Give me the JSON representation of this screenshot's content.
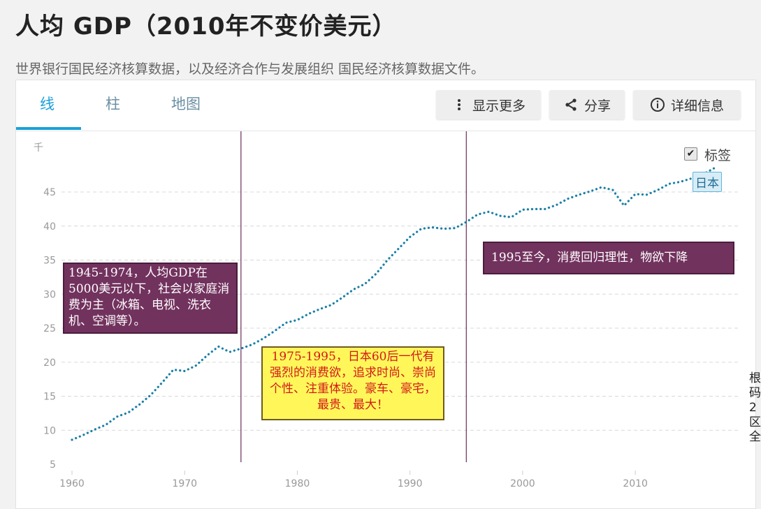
{
  "header": {
    "title": "人均 GDP（2010年不变价美元）",
    "subtitle": "世界银行国民经济核算数据，以及经济合作与发展组织 国民经济核算数据文件。"
  },
  "tabs": [
    {
      "label": "线",
      "active": true
    },
    {
      "label": "柱",
      "active": false
    },
    {
      "label": "地图",
      "active": false
    }
  ],
  "toolbar": {
    "more_label": "显示更多",
    "share_label": "分享",
    "details_label": "详细信息"
  },
  "legend": {
    "checkbox_label": "标签",
    "checked": true,
    "series_tag": "日本"
  },
  "annotations": {
    "era1": "1945-1974，人均GDP在5000美元以下，社会以家庭消费为主（冰箱、电视、洗衣机、空调等）。",
    "era2": "1975-1995，日本60后一代有强烈的消费欲，追求时尚、崇尚个性、注重体验。豪车、豪宅，最贵、最大！",
    "era3": "1995至今，消费回归理性，物欲下降"
  },
  "edge_text": [
    "根",
    "码",
    "2",
    "区",
    "全"
  ],
  "colors": {
    "accent": "#1aa0d8",
    "line": "#1a7fa6",
    "grid": "#d8d8d8",
    "axis_text": "#999999",
    "divider": "#6b2c5a"
  },
  "chart_data": {
    "type": "line",
    "ylabel": "千",
    "yticks": [
      5,
      10,
      15,
      20,
      25,
      30,
      35,
      40,
      45
    ],
    "xticks": [
      1960,
      1970,
      1980,
      1990,
      2000,
      2010
    ],
    "xlim": [
      1960,
      2017
    ],
    "ylim": [
      4,
      50
    ],
    "grid": true,
    "vlines": [
      1975,
      1995
    ],
    "series": [
      {
        "name": "日本",
        "x": [
          1960,
          1961,
          1962,
          1963,
          1964,
          1965,
          1966,
          1967,
          1968,
          1969,
          1970,
          1971,
          1972,
          1973,
          1974,
          1975,
          1976,
          1977,
          1978,
          1979,
          1980,
          1981,
          1982,
          1983,
          1984,
          1985,
          1986,
          1987,
          1988,
          1989,
          1990,
          1991,
          1992,
          1993,
          1994,
          1995,
          1996,
          1997,
          1998,
          1999,
          2000,
          2001,
          2002,
          2003,
          2004,
          2005,
          2006,
          2007,
          2008,
          2009,
          2010,
          2011,
          2012,
          2013,
          2014,
          2015,
          2016,
          2017
        ],
        "values": [
          8.6,
          9.3,
          10.1,
          10.8,
          12.0,
          12.6,
          13.8,
          15.2,
          17.0,
          18.9,
          18.7,
          19.5,
          21.0,
          22.3,
          21.5,
          22.0,
          22.6,
          23.5,
          24.6,
          25.8,
          26.2,
          27.1,
          27.8,
          28.4,
          29.5,
          30.7,
          31.5,
          33.0,
          35.0,
          36.7,
          38.4,
          39.6,
          39.8,
          39.6,
          39.7,
          40.6,
          41.7,
          42.1,
          41.5,
          41.3,
          42.4,
          42.5,
          42.5,
          43.1,
          44.0,
          44.6,
          45.1,
          45.7,
          45.3,
          43.0,
          44.7,
          44.6,
          45.3,
          46.2,
          46.5,
          47.0,
          47.6,
          48.5
        ]
      }
    ]
  }
}
